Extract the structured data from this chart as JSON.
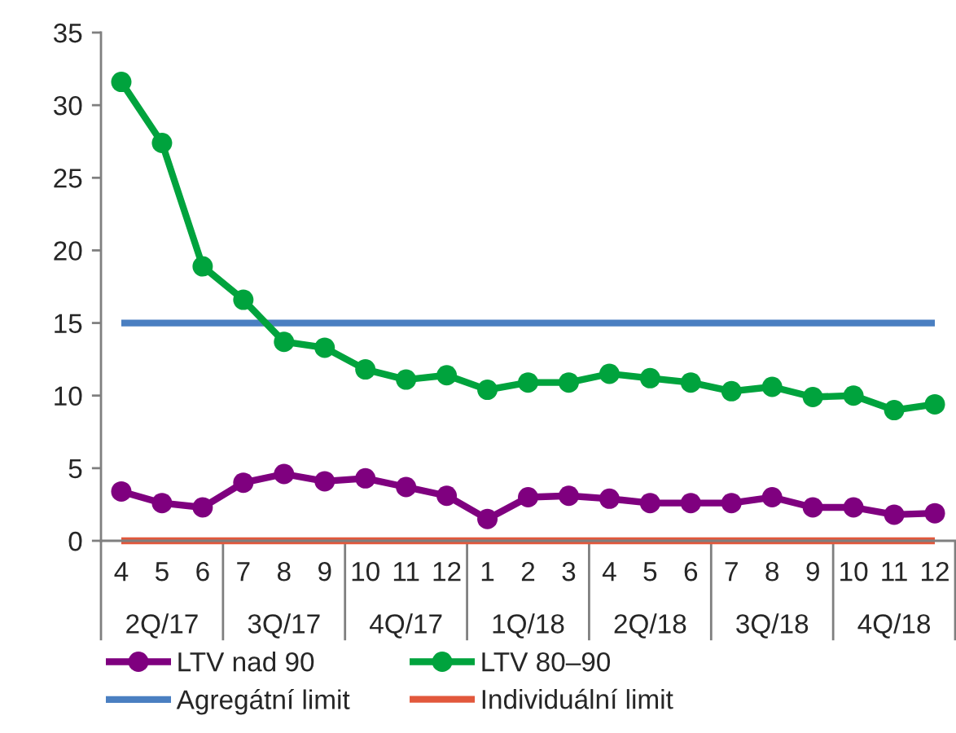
{
  "chart_data": {
    "type": "line",
    "categories": [
      "4",
      "5",
      "6",
      "7",
      "8",
      "9",
      "10",
      "11",
      "12",
      "1",
      "2",
      "3",
      "4",
      "5",
      "6",
      "7",
      "8",
      "9",
      "10",
      "11",
      "12"
    ],
    "annotations": [
      "2Q/17",
      "3Q/17",
      "4Q/17",
      "1Q/18",
      "2Q/18",
      "3Q/18",
      "4Q/18"
    ],
    "series": [
      {
        "name": "LTV nad 90",
        "color": "#7f007f",
        "values": [
          3.4,
          2.6,
          2.3,
          4.0,
          4.6,
          4.1,
          4.3,
          3.7,
          3.1,
          1.5,
          3.0,
          3.1,
          2.9,
          2.6,
          2.6,
          2.6,
          3.0,
          2.3,
          2.3,
          1.8,
          1.9
        ]
      },
      {
        "name": "LTV 80–90",
        "color": "#00a33d",
        "values": [
          31.6,
          27.4,
          18.9,
          16.6,
          13.7,
          13.3,
          11.8,
          11.1,
          11.4,
          10.4,
          10.9,
          10.9,
          11.5,
          11.2,
          10.9,
          10.3,
          10.6,
          9.9,
          10.0,
          9.0,
          9.4
        ]
      },
      {
        "name": "Agregátní limit",
        "color": "#4a7fc1",
        "marker": "none",
        "values": [
          15,
          15,
          15,
          15,
          15,
          15,
          15,
          15,
          15,
          15,
          15,
          15,
          15,
          15,
          15,
          15,
          15,
          15,
          15,
          15,
          15
        ]
      },
      {
        "name": "Individuální limit",
        "color": "#e2583c",
        "marker": "none",
        "values": [
          0,
          0,
          0,
          0,
          0,
          0,
          0,
          0,
          0,
          0,
          0,
          0,
          0,
          0,
          0,
          0,
          0,
          0,
          0,
          0,
          0
        ]
      }
    ],
    "ylim": [
      0,
      35
    ],
    "yticks": [
      0,
      5,
      10,
      15,
      20,
      25,
      30,
      35
    ],
    "grid": false,
    "legend": "bottom",
    "marker": "circle",
    "line_style": "solid"
  }
}
